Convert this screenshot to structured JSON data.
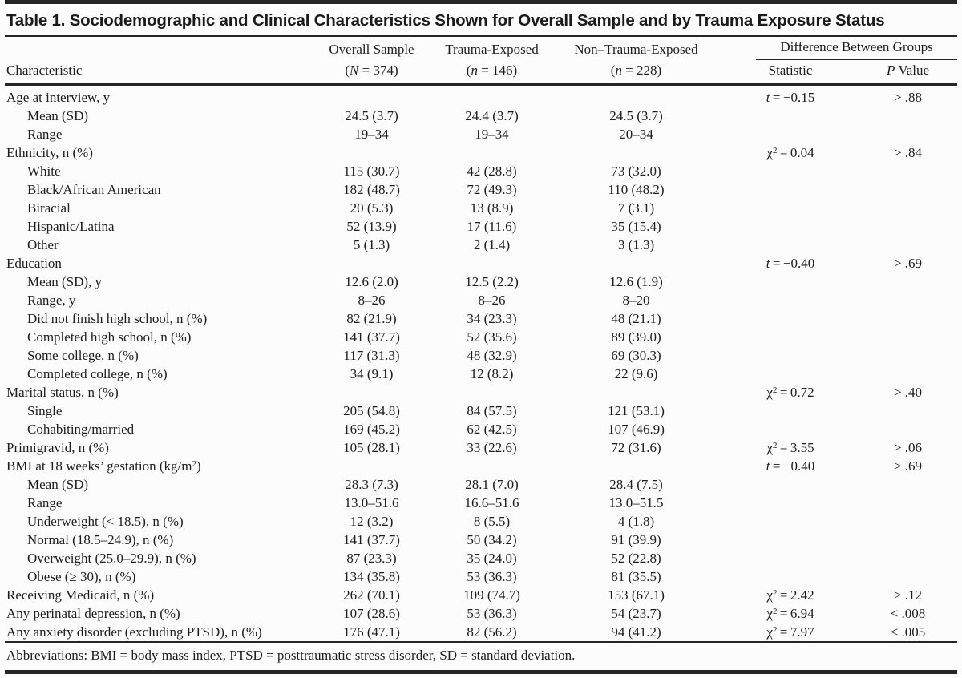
{
  "table": {
    "title": "Table 1. Sociodemographic and Clinical Characteristics Shown for Overall Sample and by Trauma Exposure Status",
    "header": {
      "characteristic": "Characteristic",
      "groups": [
        {
          "line1": "Overall Sample",
          "line2": "(N = 374)"
        },
        {
          "line1": "Trauma-Exposed",
          "line2": "(n = 146)"
        },
        {
          "line1": "Non–Trauma-Exposed",
          "line2": "(n = 228)"
        }
      ],
      "difference": "Difference Between Groups",
      "statistic": "Statistic",
      "p_value": "P Value"
    },
    "rows": [
      {
        "label": "Age at interview, y",
        "indent": false,
        "overall": "",
        "trauma": "",
        "non_trauma": "",
        "stat": {
          "symbol": "t",
          "value": "−0.15"
        },
        "p": "> .88"
      },
      {
        "label": "Mean (SD)",
        "indent": true,
        "overall": "24.5 (3.7)",
        "trauma": "24.4 (3.7)",
        "non_trauma": "24.5 (3.7)",
        "stat": null,
        "p": ""
      },
      {
        "label": "Range",
        "indent": true,
        "overall": "19–34",
        "trauma": "19–34",
        "non_trauma": "20–34",
        "stat": null,
        "p": ""
      },
      {
        "label": "Ethnicity, n (%)",
        "indent": false,
        "overall": "",
        "trauma": "",
        "non_trauma": "",
        "stat": {
          "symbol": "χ²",
          "value": "0.04"
        },
        "p": "> .84"
      },
      {
        "label": "White",
        "indent": true,
        "overall": "115 (30.7)",
        "trauma": "42 (28.8)",
        "non_trauma": "73 (32.0)",
        "stat": null,
        "p": ""
      },
      {
        "label": "Black/African American",
        "indent": true,
        "overall": "182 (48.7)",
        "trauma": "72 (49.3)",
        "non_trauma": "110 (48.2)",
        "stat": null,
        "p": ""
      },
      {
        "label": "Biracial",
        "indent": true,
        "overall": "20 (5.3)",
        "trauma": "13 (8.9)",
        "non_trauma": "7 (3.1)",
        "stat": null,
        "p": ""
      },
      {
        "label": "Hispanic/Latina",
        "indent": true,
        "overall": "52 (13.9)",
        "trauma": "17 (11.6)",
        "non_trauma": "35 (15.4)",
        "stat": null,
        "p": ""
      },
      {
        "label": "Other",
        "indent": true,
        "overall": "5 (1.3)",
        "trauma": "2 (1.4)",
        "non_trauma": "3 (1.3)",
        "stat": null,
        "p": ""
      },
      {
        "label": "Education",
        "indent": false,
        "overall": "",
        "trauma": "",
        "non_trauma": "",
        "stat": {
          "symbol": "t",
          "value": "−0.40"
        },
        "p": "> .69"
      },
      {
        "label": "Mean (SD), y",
        "indent": true,
        "overall": "12.6 (2.0)",
        "trauma": "12.5 (2.2)",
        "non_trauma": "12.6 (1.9)",
        "stat": null,
        "p": ""
      },
      {
        "label": "Range, y",
        "indent": true,
        "overall": "8–26",
        "trauma": "8–26",
        "non_trauma": "8–20",
        "stat": null,
        "p": ""
      },
      {
        "label": "Did not finish high school, n (%)",
        "indent": true,
        "overall": "82 (21.9)",
        "trauma": "34 (23.3)",
        "non_trauma": "48 (21.1)",
        "stat": null,
        "p": ""
      },
      {
        "label": "Completed high school, n (%)",
        "indent": true,
        "overall": "141 (37.7)",
        "trauma": "52 (35.6)",
        "non_trauma": "89 (39.0)",
        "stat": null,
        "p": ""
      },
      {
        "label": "Some college, n (%)",
        "indent": true,
        "overall": "117 (31.3)",
        "trauma": "48 (32.9)",
        "non_trauma": "69 (30.3)",
        "stat": null,
        "p": ""
      },
      {
        "label": "Completed college, n (%)",
        "indent": true,
        "overall": "34 (9.1)",
        "trauma": "12 (8.2)",
        "non_trauma": "22 (9.6)",
        "stat": null,
        "p": ""
      },
      {
        "label": "Marital status, n (%)",
        "indent": false,
        "overall": "",
        "trauma": "",
        "non_trauma": "",
        "stat": {
          "symbol": "χ²",
          "value": "0.72"
        },
        "p": "> .40"
      },
      {
        "label": "Single",
        "indent": true,
        "overall": "205 (54.8)",
        "trauma": "84 (57.5)",
        "non_trauma": "121 (53.1)",
        "stat": null,
        "p": ""
      },
      {
        "label": "Cohabiting/married",
        "indent": true,
        "overall": "169 (45.2)",
        "trauma": "62 (42.5)",
        "non_trauma": "107 (46.9)",
        "stat": null,
        "p": ""
      },
      {
        "label": "Primigravid, n (%)",
        "indent": false,
        "overall": "105 (28.1)",
        "trauma": "33 (22.6)",
        "non_trauma": "72 (31.6)",
        "stat": {
          "symbol": "χ²",
          "value": "3.55"
        },
        "p": "> .06"
      },
      {
        "label": "BMI at 18 weeks’ gestation (kg/m²)",
        "indent": false,
        "overall": "",
        "trauma": "",
        "non_trauma": "",
        "stat": {
          "symbol": "t",
          "value": "−0.40"
        },
        "p": "> .69"
      },
      {
        "label": "Mean (SD)",
        "indent": true,
        "overall": "28.3 (7.3)",
        "trauma": "28.1 (7.0)",
        "non_trauma": "28.4 (7.5)",
        "stat": null,
        "p": ""
      },
      {
        "label": "Range",
        "indent": true,
        "overall": "13.0–51.6",
        "trauma": "16.6–51.6",
        "non_trauma": "13.0–51.5",
        "stat": null,
        "p": ""
      },
      {
        "label": "Underweight (< 18.5), n (%)",
        "indent": true,
        "overall": "12 (3.2)",
        "trauma": "8 (5.5)",
        "non_trauma": "4 (1.8)",
        "stat": null,
        "p": ""
      },
      {
        "label": "Normal (18.5–24.9), n (%)",
        "indent": true,
        "overall": "141 (37.7)",
        "trauma": "50 (34.2)",
        "non_trauma": "91 (39.9)",
        "stat": null,
        "p": ""
      },
      {
        "label": "Overweight (25.0–29.9), n (%)",
        "indent": true,
        "overall": "87 (23.3)",
        "trauma": "35 (24.0)",
        "non_trauma": "52 (22.8)",
        "stat": null,
        "p": ""
      },
      {
        "label": "Obese (≥ 30), n (%)",
        "indent": true,
        "overall": "134 (35.8)",
        "trauma": "53 (36.3)",
        "non_trauma": "81 (35.5)",
        "stat": null,
        "p": ""
      },
      {
        "label": "Receiving Medicaid, n (%)",
        "indent": false,
        "overall": "262 (70.1)",
        "trauma": "109 (74.7)",
        "non_trauma": "153 (67.1)",
        "stat": {
          "symbol": "χ²",
          "value": "2.42"
        },
        "p": "> .12"
      },
      {
        "label": "Any perinatal depression, n (%)",
        "indent": false,
        "overall": "107 (28.6)",
        "trauma": "53 (36.3)",
        "non_trauma": "54 (23.7)",
        "stat": {
          "symbol": "χ²",
          "value": "6.94"
        },
        "p": "< .008"
      },
      {
        "label": "Any anxiety disorder (excluding PTSD), n (%)",
        "indent": false,
        "overall": "176 (47.1)",
        "trauma": "82 (56.2)",
        "non_trauma": "94 (41.2)",
        "stat": {
          "symbol": "χ²",
          "value": "7.97"
        },
        "p": "< .005"
      }
    ],
    "footnote": "Abbreviations: BMI = body mass index, PTSD = posttraumatic stress disorder, SD = standard deviation.",
    "colors": {
      "text": "#1d1d1d",
      "rule": "#262626",
      "background": "#fcfcfc"
    }
  }
}
